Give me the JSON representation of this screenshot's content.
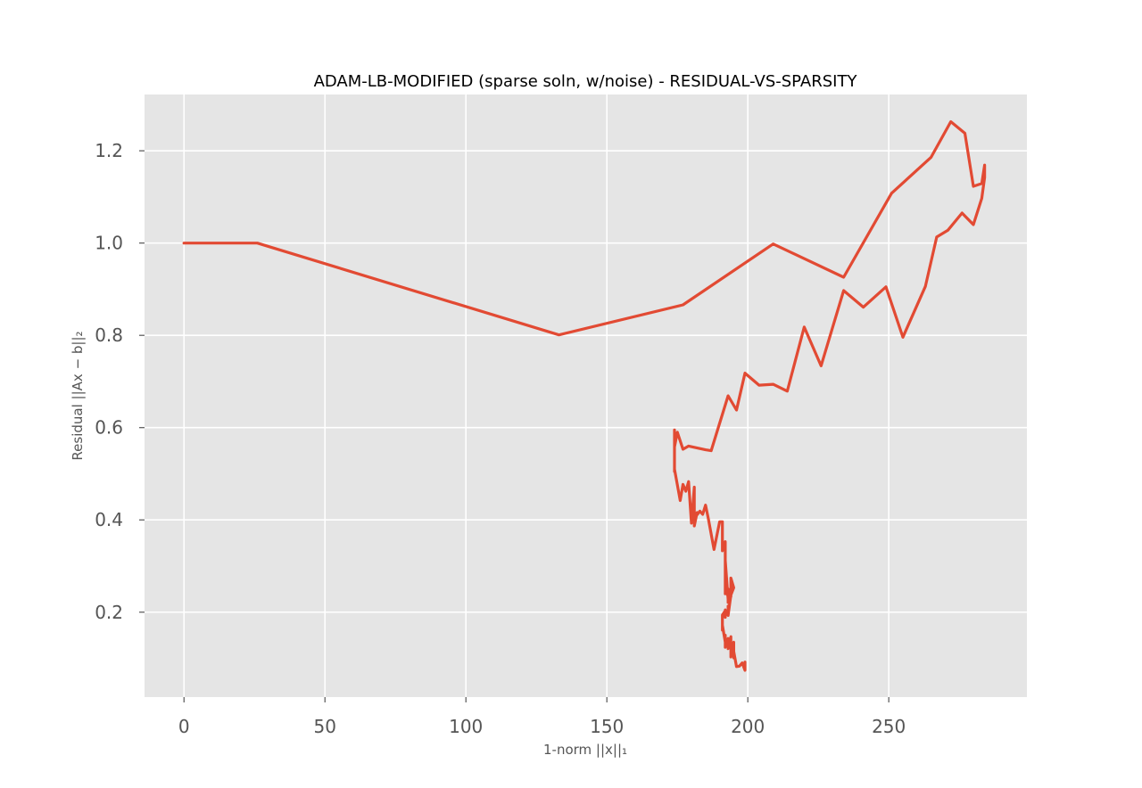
{
  "chart_data": {
    "type": "line",
    "title": "ADAM-LB-MODIFIED (sparse soln, w/noise) - RESIDUAL-VS-SPARSITY",
    "xlabel": "1-norm ||x||₁",
    "ylabel": "Residual ||Ax − b||₂",
    "xlim": [
      -14,
      299
    ],
    "ylim": [
      0.016,
      1.322
    ],
    "x_ticks": [
      0,
      50,
      100,
      150,
      200,
      250
    ],
    "x_tick_labels": [
      "0",
      "50",
      "100",
      "150",
      "200",
      "250"
    ],
    "y_ticks": [
      0.2,
      0.4,
      0.6,
      0.8,
      1.0,
      1.2
    ],
    "y_tick_labels": [
      "0.2",
      "0.4",
      "0.6",
      "0.8",
      "1.0",
      "1.2"
    ],
    "grid": true,
    "series": [
      {
        "color": "#e24a33",
        "x": [
          0,
          26,
          133,
          177,
          209,
          234,
          251,
          265,
          272,
          277,
          280,
          283,
          284,
          284,
          283,
          280,
          276,
          271,
          267,
          263,
          255,
          249,
          241,
          234,
          226,
          220,
          214,
          209,
          204,
          199,
          196,
          193,
          187,
          185,
          179,
          177,
          175,
          174,
          174,
          174,
          174,
          175,
          176,
          177,
          178,
          179,
          180,
          181,
          181,
          182,
          182,
          183,
          184,
          185,
          186,
          188,
          190,
          191,
          191,
          192,
          192,
          192,
          193,
          193,
          192,
          193,
          193,
          194,
          194,
          194,
          194,
          195,
          194,
          193,
          193,
          193,
          192,
          192,
          192,
          191,
          191,
          191,
          191,
          192,
          192,
          192,
          193,
          193,
          193,
          194,
          194,
          195,
          195,
          195,
          196,
          197,
          198,
          199,
          199
        ],
        "y": [
          1.0,
          1.0,
          0.801,
          0.866,
          0.998,
          0.926,
          1.108,
          1.186,
          1.263,
          1.238,
          1.123,
          1.129,
          1.169,
          1.142,
          1.097,
          1.04,
          1.065,
          1.028,
          1.013,
          0.906,
          0.796,
          0.905,
          0.861,
          0.897,
          0.734,
          0.818,
          0.679,
          0.694,
          0.692,
          0.718,
          0.638,
          0.669,
          0.55,
          0.552,
          0.56,
          0.553,
          0.59,
          0.558,
          0.595,
          0.505,
          0.51,
          0.476,
          0.442,
          0.477,
          0.462,
          0.483,
          0.393,
          0.471,
          0.387,
          0.416,
          0.411,
          0.419,
          0.412,
          0.432,
          0.403,
          0.336,
          0.396,
          0.396,
          0.333,
          0.353,
          0.24,
          0.312,
          0.228,
          0.232,
          0.262,
          0.249,
          0.221,
          0.254,
          0.265,
          0.234,
          0.274,
          0.253,
          0.237,
          0.193,
          0.213,
          0.193,
          0.205,
          0.189,
          0.203,
          0.194,
          0.175,
          0.161,
          0.172,
          0.135,
          0.15,
          0.124,
          0.143,
          0.128,
          0.121,
          0.147,
          0.103,
          0.135,
          0.101,
          0.115,
          0.082,
          0.083,
          0.09,
          0.074,
          0.092
        ]
      }
    ]
  }
}
